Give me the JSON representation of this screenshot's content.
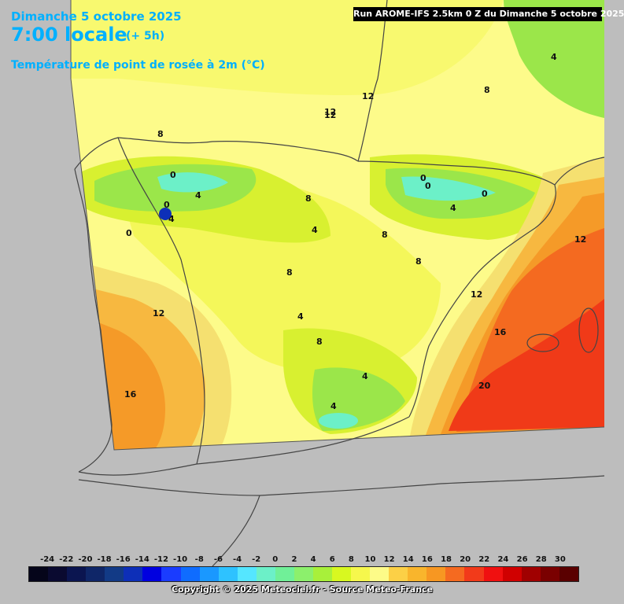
{
  "header": {
    "date": "Dimanche 5 octobre 2025",
    "time": "7:00 locale",
    "offset": "(+ 5h)",
    "parameter": "Température de point de rosée à 2m (°C)",
    "run": "Run AROME-IFS 2.5km 0 Z du Dimanche 5 octobre 2025"
  },
  "map": {
    "contour_labels": [
      "12",
      "12",
      "0",
      "4",
      "0",
      "0",
      "4",
      "4",
      "4",
      "0",
      "0",
      "0",
      "8",
      "8",
      "4",
      "8",
      "8",
      "8",
      "12",
      "12",
      "12",
      "16",
      "8",
      "4",
      "4",
      "16",
      "20",
      "4",
      "8",
      "12"
    ],
    "colors": {
      "outside": "#bdbdbd",
      "dew_4_6": "#9be64a",
      "dew_6_8": "#d8f030",
      "dew_8_10": "#f4f75a",
      "dew_10_12": "#fdfb8a",
      "dew_12_14": "#f5e070",
      "dew_14_16": "#f7b840",
      "dew_16_18": "#f59a28",
      "dew_18_20": "#f46a20",
      "dew_20_22": "#f03a18",
      "border_line": "#444444"
    }
  },
  "legend": {
    "labels": [
      "-24",
      "-22",
      "-20",
      "-18",
      "-16",
      "-14",
      "-12",
      "-10",
      "-8",
      "-6",
      "-4",
      "-2",
      "0",
      "2",
      "4",
      "6",
      "8",
      "10",
      "12",
      "14",
      "16",
      "18",
      "20",
      "22",
      "24",
      "26",
      "28",
      "30"
    ],
    "colors": [
      "#05051a",
      "#0a0a30",
      "#0b1550",
      "#0f2668",
      "#123a86",
      "#0d2fb8",
      "#0000e0",
      "#1a3cff",
      "#0f6cff",
      "#1a98ff",
      "#2ec2ff",
      "#55e6ff",
      "#6cf0c8",
      "#70f098",
      "#8cf06c",
      "#a8f03a",
      "#d8f820",
      "#f6f74c",
      "#fdfb88",
      "#fcd046",
      "#f9b52c",
      "#f79722",
      "#f56a20",
      "#f23a1a",
      "#f01010",
      "#d00000",
      "#a00000",
      "#7a0000",
      "#5a0000"
    ]
  },
  "footer": {
    "copyright": "Copyright © 2025 Meteociel.fr - Source Meteo-France"
  }
}
